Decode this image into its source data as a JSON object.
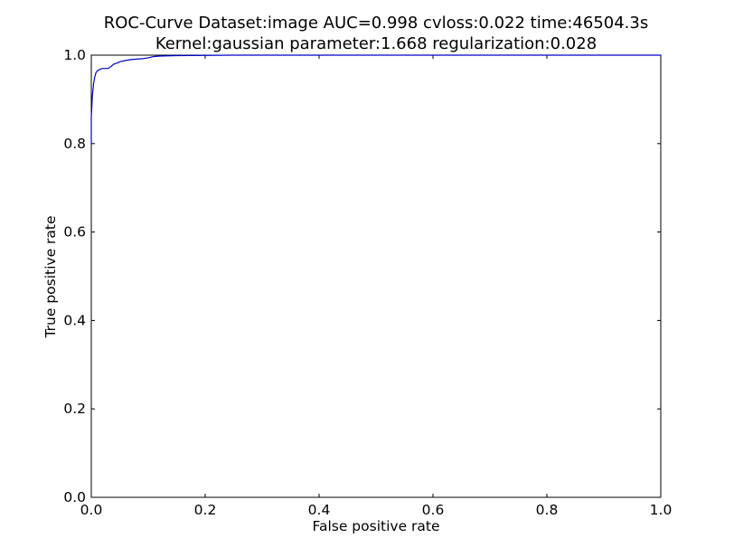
{
  "chart_data": {
    "type": "line",
    "title": "ROC-Curve Dataset:image AUC=0.998 cvloss:0.022 time:46504.3s",
    "subtitle": "Kernel:gaussian parameter:1.668 regularization:0.028",
    "xlabel": "False positive rate",
    "ylabel": "True positive rate",
    "xlim": [
      0.0,
      1.0
    ],
    "ylim": [
      0.0,
      1.0
    ],
    "xticks": [
      "0.0",
      "0.2",
      "0.4",
      "0.6",
      "0.8",
      "1.0"
    ],
    "yticks": [
      "0.0",
      "0.2",
      "0.4",
      "0.6",
      "0.8",
      "1.0"
    ],
    "grid": false,
    "line_color": "#0000cc",
    "series": [
      {
        "x": [
          0.0,
          0.0,
          0.002,
          0.004,
          0.006,
          0.008,
          0.011,
          0.015,
          0.02,
          0.03,
          0.035,
          0.04,
          0.045,
          0.05,
          0.06,
          0.07,
          0.08,
          0.09,
          0.1,
          0.11,
          0.12,
          0.15,
          0.2,
          0.25,
          0.26,
          1.0
        ],
        "y": [
          0.8,
          0.86,
          0.91,
          0.935,
          0.95,
          0.96,
          0.965,
          0.968,
          0.97,
          0.97,
          0.975,
          0.98,
          0.982,
          0.985,
          0.988,
          0.99,
          0.991,
          0.992,
          0.994,
          0.997,
          0.998,
          0.999,
          0.9995,
          1.0,
          1.0,
          1.0
        ]
      }
    ]
  }
}
